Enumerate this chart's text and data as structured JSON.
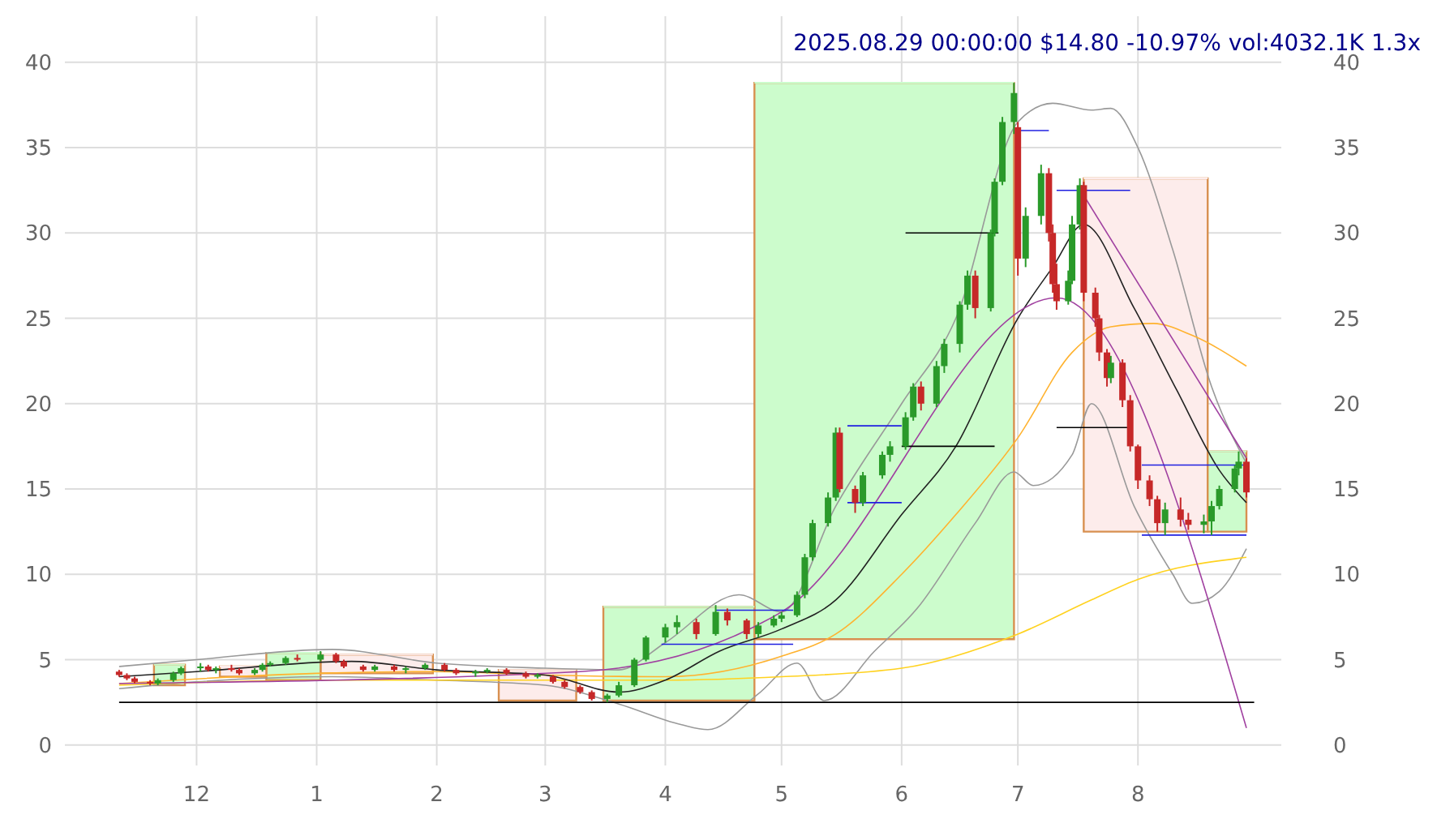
{
  "chart_data": {
    "type": "candlestick",
    "title": "2025.08.29 00:00:00 $14.80 -10.97% vol:4032.1K 1.3x",
    "x": [
      "2024-11-11",
      "2024-11-13",
      "2024-11-15",
      "2024-11-19",
      "2024-11-21",
      "2024-11-25",
      "2024-11-27",
      "2024-12-02",
      "2024-12-04",
      "2024-12-06",
      "2024-12-10",
      "2024-12-12",
      "2024-12-16",
      "2024-12-18",
      "2024-12-20",
      "2024-12-24",
      "2024-12-27",
      "2025-01-02",
      "2025-01-06",
      "2025-01-08",
      "2025-01-13",
      "2025-01-16",
      "2025-01-21",
      "2025-01-24",
      "2025-01-29",
      "2025-02-03",
      "2025-02-06",
      "2025-02-11",
      "2025-02-14",
      "2025-02-19",
      "2025-02-24",
      "2025-02-27",
      "2025-03-03",
      "2025-03-06",
      "2025-03-10",
      "2025-03-13",
      "2025-03-17",
      "2025-03-20",
      "2025-03-24",
      "2025-03-27",
      "2025-04-01",
      "2025-04-04",
      "2025-04-09",
      "2025-04-14",
      "2025-04-17",
      "2025-04-22",
      "2025-04-25",
      "2025-04-29",
      "2025-05-01",
      "2025-05-05",
      "2025-05-07",
      "2025-05-09",
      "2025-05-13",
      "2025-05-15",
      "2025-05-16",
      "2025-05-20",
      "2025-05-22",
      "2025-05-27",
      "2025-05-29",
      "2025-06-02",
      "2025-06-04",
      "2025-06-06",
      "2025-06-10",
      "2025-06-12",
      "2025-06-16",
      "2025-06-18",
      "2025-06-20",
      "2025-06-24",
      "2025-06-25",
      "2025-06-27",
      "2025-06-30",
      "2025-07-01",
      "2025-07-03",
      "2025-07-07",
      "2025-07-09",
      "2025-07-10",
      "2025-07-11",
      "2025-07-14",
      "2025-07-15",
      "2025-07-17",
      "2025-07-18",
      "2025-07-21",
      "2025-07-22",
      "2025-07-24",
      "2025-07-25",
      "2025-07-28",
      "2025-07-30",
      "2025-08-01",
      "2025-08-04",
      "2025-08-06",
      "2025-08-08",
      "2025-08-12",
      "2025-08-14",
      "2025-08-18",
      "2025-08-20",
      "2025-08-22",
      "2025-08-26",
      "2025-08-27",
      "2025-08-29"
    ],
    "ohlc": [
      [
        4.3,
        4.4,
        4.0,
        4.1
      ],
      [
        4.1,
        4.2,
        3.8,
        3.9
      ],
      [
        3.9,
        4.0,
        3.6,
        3.7
      ],
      [
        3.7,
        3.8,
        3.5,
        3.6
      ],
      [
        3.6,
        3.9,
        3.5,
        3.8
      ],
      [
        3.8,
        4.3,
        3.7,
        4.2
      ],
      [
        4.2,
        4.6,
        4.1,
        4.5
      ],
      [
        4.5,
        4.8,
        4.3,
        4.6
      ],
      [
        4.6,
        4.7,
        4.3,
        4.4
      ],
      [
        4.4,
        4.6,
        4.2,
        4.5
      ],
      [
        4.5,
        4.7,
        4.3,
        4.4
      ],
      [
        4.4,
        4.5,
        4.1,
        4.2
      ],
      [
        4.2,
        4.5,
        4.1,
        4.4
      ],
      [
        4.4,
        4.8,
        4.3,
        4.7
      ],
      [
        4.7,
        4.9,
        4.6,
        4.8
      ],
      [
        4.8,
        5.2,
        4.7,
        5.1
      ],
      [
        5.1,
        5.3,
        4.9,
        5.0
      ],
      [
        5.0,
        5.5,
        4.9,
        5.3
      ],
      [
        5.3,
        5.4,
        4.8,
        4.9
      ],
      [
        4.9,
        5.0,
        4.5,
        4.6
      ],
      [
        4.6,
        4.7,
        4.3,
        4.4
      ],
      [
        4.4,
        4.7,
        4.3,
        4.6
      ],
      [
        4.6,
        4.7,
        4.3,
        4.4
      ],
      [
        4.4,
        4.6,
        4.2,
        4.5
      ],
      [
        4.5,
        4.8,
        4.4,
        4.7
      ],
      [
        4.7,
        4.8,
        4.3,
        4.4
      ],
      [
        4.4,
        4.5,
        4.1,
        4.2
      ],
      [
        4.2,
        4.4,
        4.0,
        4.3
      ],
      [
        4.3,
        4.5,
        4.2,
        4.4
      ],
      [
        4.4,
        4.5,
        4.1,
        4.2
      ],
      [
        4.2,
        4.3,
        3.9,
        4.0
      ],
      [
        4.0,
        4.2,
        3.9,
        4.1
      ],
      [
        4.0,
        4.1,
        3.6,
        3.7
      ],
      [
        3.7,
        3.8,
        3.3,
        3.4
      ],
      [
        3.4,
        3.5,
        3.0,
        3.1
      ],
      [
        3.1,
        3.2,
        2.6,
        2.7
      ],
      [
        2.7,
        3.0,
        2.5,
        2.9
      ],
      [
        2.9,
        3.7,
        2.8,
        3.5
      ],
      [
        3.5,
        5.1,
        3.4,
        5.0
      ],
      [
        5.0,
        6.4,
        4.9,
        6.3
      ],
      [
        6.3,
        7.1,
        6.0,
        6.9
      ],
      [
        6.9,
        7.6,
        6.5,
        7.2
      ],
      [
        7.2,
        7.4,
        6.2,
        6.5
      ],
      [
        6.5,
        8.2,
        6.4,
        7.8
      ],
      [
        7.8,
        8.0,
        7.0,
        7.3
      ],
      [
        7.3,
        7.4,
        6.2,
        6.5
      ],
      [
        6.5,
        7.2,
        6.3,
        7.0
      ],
      [
        7.0,
        7.6,
        6.9,
        7.4
      ],
      [
        7.4,
        7.8,
        7.2,
        7.6
      ],
      [
        7.6,
        9.0,
        7.5,
        8.8
      ],
      [
        8.8,
        11.2,
        8.6,
        11.0
      ],
      [
        11.0,
        13.2,
        10.8,
        13.0
      ],
      [
        13.0,
        14.8,
        12.8,
        14.5
      ],
      [
        14.5,
        18.6,
        14.3,
        18.3
      ],
      [
        18.3,
        18.6,
        14.8,
        15.0
      ],
      [
        15.0,
        15.2,
        13.6,
        14.2
      ],
      [
        14.2,
        16.0,
        14.0,
        15.8
      ],
      [
        15.8,
        17.2,
        15.6,
        17.0
      ],
      [
        17.0,
        17.8,
        16.6,
        17.5
      ],
      [
        17.5,
        19.5,
        17.3,
        19.2
      ],
      [
        19.2,
        21.2,
        19.0,
        21.0
      ],
      [
        21.0,
        21.3,
        19.6,
        20.0
      ],
      [
        20.0,
        22.5,
        19.8,
        22.2
      ],
      [
        22.2,
        23.8,
        21.8,
        23.5
      ],
      [
        23.5,
        26.0,
        23.0,
        25.8
      ],
      [
        25.8,
        27.8,
        25.5,
        27.5
      ],
      [
        27.5,
        27.8,
        25.0,
        25.6
      ],
      [
        25.6,
        30.2,
        25.4,
        30.0
      ],
      [
        30.0,
        33.2,
        29.8,
        33.0
      ],
      [
        33.0,
        36.8,
        32.8,
        36.5
      ],
      [
        36.5,
        38.8,
        35.8,
        38.2
      ],
      [
        36.2,
        36.5,
        27.5,
        28.5
      ],
      [
        28.5,
        31.5,
        28.0,
        31.0
      ],
      [
        31.0,
        34.0,
        30.5,
        33.5
      ],
      [
        33.5,
        33.8,
        29.5,
        30.0
      ],
      [
        30.0,
        30.5,
        26.5,
        27.0
      ],
      [
        27.0,
        28.2,
        25.5,
        26.0
      ],
      [
        26.0,
        27.8,
        25.8,
        27.2
      ],
      [
        27.2,
        31.0,
        27.0,
        30.5
      ],
      [
        30.5,
        33.2,
        30.2,
        32.8
      ],
      [
        32.8,
        33.0,
        26.0,
        26.5
      ],
      [
        26.5,
        26.8,
        24.5,
        25.0
      ],
      [
        25.0,
        25.2,
        22.5,
        23.0
      ],
      [
        23.0,
        23.2,
        21.0,
        21.5
      ],
      [
        21.5,
        22.8,
        21.2,
        22.4
      ],
      [
        22.4,
        22.6,
        19.8,
        20.2
      ],
      [
        20.2,
        20.5,
        17.2,
        17.5
      ],
      [
        17.5,
        17.6,
        15.0,
        15.5
      ],
      [
        15.5,
        15.8,
        14.0,
        14.4
      ],
      [
        14.4,
        14.6,
        12.5,
        13.0
      ],
      [
        13.0,
        14.2,
        12.3,
        13.8
      ],
      [
        13.8,
        14.5,
        12.8,
        13.2
      ],
      [
        13.2,
        13.6,
        12.6,
        12.9
      ],
      [
        12.9,
        13.5,
        12.4,
        13.1
      ],
      [
        13.1,
        14.3,
        12.3,
        14.0
      ],
      [
        14.0,
        15.2,
        13.8,
        15.0
      ],
      [
        15.0,
        16.4,
        14.8,
        16.2
      ],
      [
        16.2,
        17.2,
        15.8,
        16.6
      ],
      [
        16.6,
        16.8,
        14.5,
        14.8
      ]
    ],
    "colors": [
      "#c62828",
      "#c62828",
      "#c62828",
      "#c62828",
      "#2a9a2a",
      "#2a9a2a",
      "#2a9a2a",
      "#2a9a2a",
      "#c62828",
      "#2a9a2a",
      "#c62828",
      "#c62828",
      "#2a9a2a",
      "#2a9a2a",
      "#2a9a2a",
      "#2a9a2a",
      "#c62828",
      "#2a9a2a",
      "#c62828",
      "#c62828",
      "#c62828",
      "#2a9a2a",
      "#c62828",
      "#2a9a2a",
      "#2a9a2a",
      "#c62828",
      "#c62828",
      "#2a9a2a",
      "#2a9a2a",
      "#c62828",
      "#c62828",
      "#2a9a2a",
      "#c62828",
      "#c62828",
      "#c62828",
      "#c62828",
      "#2a9a2a",
      "#2a9a2a",
      "#2a9a2a",
      "#2a9a2a",
      "#2a9a2a",
      "#2a9a2a",
      "#c62828",
      "#2a9a2a",
      "#c62828",
      "#c62828",
      "#2a9a2a",
      "#2a9a2a",
      "#2a9a2a",
      "#2a9a2a",
      "#2a9a2a",
      "#2a9a2a",
      "#2a9a2a",
      "#2a9a2a",
      "#c62828",
      "#c62828",
      "#2a9a2a",
      "#2a9a2a",
      "#2a9a2a",
      "#2a9a2a",
      "#2a9a2a",
      "#c62828",
      "#2a9a2a",
      "#2a9a2a",
      "#2a9a2a",
      "#2a9a2a",
      "#c62828",
      "#2a9a2a",
      "#2a9a2a",
      "#2a9a2a",
      "#2a9a2a",
      "#c62828",
      "#2a9a2a",
      "#2a9a2a",
      "#c62828",
      "#c62828",
      "#c62828",
      "#2a9a2a",
      "#2a9a2a",
      "#2a9a2a",
      "#c62828",
      "#c62828",
      "#c62828",
      "#c62828",
      "#2a9a2a",
      "#c62828",
      "#c62828",
      "#c62828",
      "#c62828",
      "#c62828",
      "#2a9a2a",
      "#c62828",
      "#c62828",
      "#2a9a2a",
      "#2a9a2a",
      "#2a9a2a",
      "#2a9a2a",
      "#2a9a2a",
      "#c62828"
    ],
    "series": [
      {
        "type": "line",
        "color": "#ccfccc",
        "x": [
          "2025-04-24",
          "2025-06-30"
        ],
        "lower": [
          6.2,
          6.2
        ],
        "upper": [
          38.8,
          38.8
        ],
        "values": [
          38.8,
          38.8
        ]
      },
      {
        "type": "line",
        "color": "#fdeceb",
        "x": [
          "2025-07-18",
          "2025-08-19"
        ],
        "lower": [
          12.5,
          12.5
        ],
        "upper": [
          33.2,
          33.2
        ],
        "values": [
          33.2,
          33.2
        ]
      },
      {
        "type": "line",
        "color": "#ccfccc",
        "x": [
          "2025-08-19",
          "2025-08-29"
        ],
        "lower": [
          12.5,
          12.5
        ],
        "upper": [
          17.2,
          17.2
        ],
        "values": [
          17.2,
          17.2
        ]
      },
      {
        "type": "line",
        "color": "#ccfccc",
        "x": [
          "2025-03-16",
          "2025-04-24"
        ],
        "lower": [
          2.6,
          2.6
        ],
        "upper": [
          8.1,
          8.1
        ],
        "values": [
          8.1,
          8.1
        ]
      },
      {
        "type": "line",
        "color": "#fdeceb",
        "x": [
          "2025-02-17",
          "2025-03-09"
        ],
        "lower": [
          2.6,
          2.6
        ],
        "upper": [
          4.4,
          4.4
        ],
        "values": [
          4.4,
          4.4
        ]
      },
      {
        "type": "line",
        "color": "#fdeceb",
        "x": [
          "2025-01-02",
          "2025-01-31"
        ],
        "lower": [
          4.2,
          4.2
        ],
        "upper": [
          5.3,
          5.3
        ],
        "values": [
          5.3,
          5.3
        ]
      },
      {
        "type": "line",
        "color": "#ccfccc",
        "x": [
          "2024-12-19",
          "2025-01-02"
        ],
        "lower": [
          3.8,
          3.8
        ],
        "upper": [
          5.4,
          5.4
        ],
        "values": [
          5.4,
          5.4
        ]
      },
      {
        "type": "line",
        "color": "#fdeceb",
        "x": [
          "2024-12-07",
          "2024-12-19"
        ],
        "lower": [
          4.0,
          4.0
        ],
        "upper": [
          4.6,
          4.6
        ],
        "values": [
          4.6,
          4.6
        ]
      },
      {
        "type": "line",
        "color": "#ccfccc",
        "x": [
          "2024-11-20",
          "2024-11-28"
        ],
        "lower": [
          3.5,
          3.5
        ],
        "upper": [
          4.7,
          4.7
        ],
        "values": [
          4.7,
          4.7
        ]
      },
      {
        "type": "line",
        "color": "#999999",
        "x": [
          "2024-11-11",
          "2024-12-01",
          "2025-01-05",
          "2025-02-01",
          "2025-03-01",
          "2025-03-20",
          "2025-04-01",
          "2025-04-20",
          "2025-05-01",
          "2025-05-15",
          "2025-06-01",
          "2025-06-15",
          "2025-07-01",
          "2025-07-10",
          "2025-07-20",
          "2025-07-25",
          "2025-08-01",
          "2025-08-10",
          "2025-08-20",
          "2025-08-29"
        ],
        "values": [
          4.6,
          5.0,
          5.6,
          4.8,
          4.5,
          4.4,
          6.0,
          8.8,
          7.8,
          14,
          20,
          25,
          36.5,
          37.6,
          37.2,
          37.3,
          35,
          29,
          21,
          16.5
        ]
      },
      {
        "type": "line",
        "color": "#999999",
        "x": [
          "2024-11-11",
          "2024-12-01",
          "2025-01-05",
          "2025-02-01",
          "2025-03-01",
          "2025-03-20",
          "2025-04-05",
          "2025-04-12",
          "2025-04-25",
          "2025-05-05",
          "2025-05-12",
          "2025-05-25",
          "2025-06-05",
          "2025-06-20",
          "2025-06-30",
          "2025-07-05",
          "2025-07-15",
          "2025-07-20",
          "2025-07-31",
          "2025-08-10",
          "2025-08-15",
          "2025-08-22",
          "2025-08-29"
        ],
        "values": [
          3.3,
          3.7,
          4.0,
          3.8,
          3.5,
          2.4,
          1.2,
          0.9,
          3.0,
          4.8,
          2.6,
          5.5,
          8,
          13,
          16,
          15.2,
          17,
          20,
          14,
          10,
          8.3,
          9,
          11.5
        ]
      },
      {
        "type": "line",
        "color": "#ffd21f",
        "x": [
          "2024-11-11",
          "2025-01-01",
          "2025-03-01",
          "2025-04-01",
          "2025-05-01",
          "2025-06-01",
          "2025-07-01",
          "2025-07-20",
          "2025-08-01",
          "2025-08-29"
        ],
        "values": [
          3.5,
          3.8,
          3.8,
          3.8,
          4.0,
          4.5,
          6.5,
          8.5,
          9.7,
          11.0
        ]
      },
      {
        "type": "line",
        "color": "#ffb22e",
        "x": [
          "2024-11-11",
          "2025-01-01",
          "2025-02-01",
          "2025-03-01",
          "2025-04-01",
          "2025-05-01",
          "2025-05-15",
          "2025-06-01",
          "2025-06-15",
          "2025-07-01",
          "2025-07-15",
          "2025-07-25",
          "2025-08-05",
          "2025-08-15",
          "2025-08-29"
        ],
        "values": [
          3.6,
          4.2,
          4.3,
          4.1,
          4.0,
          5.2,
          6.5,
          10,
          13.5,
          18,
          23,
          24.5,
          24.7,
          24,
          22.2
        ]
      },
      {
        "type": "line",
        "color": "#222222",
        "x": [
          "2024-11-11",
          "2024-12-01",
          "2025-01-10",
          "2025-02-01",
          "2025-03-01",
          "2025-03-20",
          "2025-04-01",
          "2025-04-15",
          "2025-05-01",
          "2025-05-15",
          "2025-06-01",
          "2025-06-15",
          "2025-07-01",
          "2025-07-10",
          "2025-07-18",
          "2025-07-31",
          "2025-08-11",
          "2025-08-22",
          "2025-08-29"
        ],
        "values": [
          4.0,
          4.3,
          4.9,
          4.4,
          4.1,
          3.1,
          3.8,
          5.5,
          6.8,
          8.5,
          13.5,
          17.5,
          25,
          28,
          30.5,
          25.6,
          20.8,
          16.1,
          14.2
        ]
      },
      {
        "type": "line",
        "color": "#a040a0",
        "x": [
          "2024-11-11",
          "2025-03-10",
          "2025-05-01",
          "2025-07-11",
          "2025-08-29"
        ],
        "values": [
          3.6,
          4.3,
          7.8,
          26.2,
          1.0
        ]
      },
      {
        "type": "line",
        "color": "#a040a0",
        "x": [
          "2025-07-18",
          "2025-08-29"
        ],
        "values": [
          32.2,
          16.8
        ]
      },
      {
        "type": "line",
        "color": "#000000",
        "x": [
          "2024-11-11",
          "2025-08-31"
        ],
        "values": [
          2.5,
          2.5
        ]
      },
      {
        "type": "line",
        "color": "#000000",
        "x": [
          "2025-06-02",
          "2025-06-26"
        ],
        "values": [
          30,
          30
        ]
      },
      {
        "type": "line",
        "color": "#000000",
        "x": [
          "2025-06-01",
          "2025-06-25"
        ],
        "values": [
          17.5,
          17.5
        ]
      },
      {
        "type": "line",
        "color": "#000000",
        "x": [
          "2025-07-11",
          "2025-07-30"
        ],
        "values": [
          18.6,
          18.6
        ]
      },
      {
        "type": "line",
        "color": "#2020e0",
        "x": [
          "2025-04-14",
          "2025-05-04"
        ],
        "values": [
          7.9,
          7.9
        ]
      },
      {
        "type": "line",
        "color": "#2020e0",
        "x": [
          "2025-03-31",
          "2025-05-04"
        ],
        "values": [
          5.9,
          5.9
        ]
      },
      {
        "type": "line",
        "color": "#2020e0",
        "x": [
          "2025-05-18",
          "2025-06-01"
        ],
        "values": [
          18.7,
          18.7
        ]
      },
      {
        "type": "line",
        "color": "#2020e0",
        "x": [
          "2025-05-18",
          "2025-06-01"
        ],
        "values": [
          14.2,
          14.2
        ]
      },
      {
        "type": "line",
        "color": "#2020e0",
        "x": [
          "2025-07-01",
          "2025-07-09"
        ],
        "values": [
          36.0,
          36.0
        ]
      },
      {
        "type": "line",
        "color": "#2020e0",
        "x": [
          "2025-07-11",
          "2025-07-30"
        ],
        "values": [
          32.5,
          32.5
        ]
      },
      {
        "type": "line",
        "color": "#2020e0",
        "x": [
          "2025-08-02",
          "2025-08-29"
        ],
        "values": [
          16.4,
          16.4
        ]
      },
      {
        "type": "line",
        "color": "#2020e0",
        "x": [
          "2025-08-02",
          "2025-08-29"
        ],
        "values": [
          12.3,
          12.3
        ]
      }
    ],
    "xlim": [
      "2024-10-28",
      "2025-09-07"
    ],
    "xticks": [
      {
        "value": "2024-12-01",
        "label": "12"
      },
      {
        "value": "2025-01-01",
        "label": "1"
      },
      {
        "value": "2025-02-01",
        "label": "2"
      },
      {
        "value": "2025-03-01",
        "label": "3"
      },
      {
        "value": "2025-04-01",
        "label": "4"
      },
      {
        "value": "2025-05-01",
        "label": "5"
      },
      {
        "value": "2025-06-01",
        "label": "6"
      },
      {
        "value": "2025-07-01",
        "label": "7"
      },
      {
        "value": "2025-08-01",
        "label": "8"
      }
    ],
    "ylim": [
      -1.2,
      42.7
    ],
    "yticks": [
      0,
      5,
      10,
      15,
      20,
      25,
      30,
      35,
      40
    ],
    "y2lim": [
      -1.2,
      42.7
    ],
    "y2ticks": [
      0,
      5,
      10,
      15,
      20,
      25,
      30,
      35,
      40
    ],
    "grid": true
  }
}
